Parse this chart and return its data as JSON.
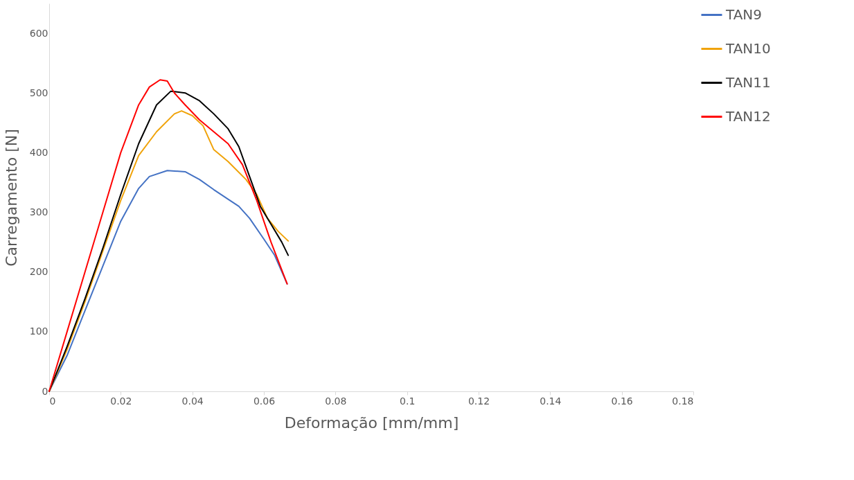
{
  "chart_data": {
    "type": "line",
    "xlabel": "Deformação [mm/mm]",
    "ylabel": "Carregamento [N]",
    "xlim": [
      0,
      0.18
    ],
    "xticks": [
      0,
      0.02,
      0.04,
      0.06,
      0.08,
      0.1,
      0.12,
      0.14,
      0.16,
      0.18
    ],
    "ylim": [
      0,
      650
    ],
    "yticks": [
      0,
      100,
      200,
      300,
      400,
      500,
      600
    ],
    "grid": false,
    "legend": "top right",
    "marker": "none",
    "line_style": "solid",
    "series": [
      {
        "name": "TAN9",
        "color": "#4472c4",
        "x": [
          0,
          0.005,
          0.01,
          0.015,
          0.02,
          0.025,
          0.028,
          0.033,
          0.038,
          0.042,
          0.046,
          0.05,
          0.053,
          0.056,
          0.06,
          0.063,
          0.0665
        ],
        "values": [
          0,
          60,
          135,
          210,
          285,
          340,
          360,
          370,
          368,
          355,
          338,
          322,
          310,
          290,
          255,
          228,
          180
        ]
      },
      {
        "name": "TAN10",
        "color": "#f0a30a",
        "x": [
          0,
          0.005,
          0.01,
          0.015,
          0.02,
          0.025,
          0.03,
          0.035,
          0.037,
          0.04,
          0.043,
          0.046,
          0.05,
          0.055,
          0.058,
          0.061,
          0.064,
          0.0668
        ],
        "values": [
          0,
          70,
          150,
          235,
          320,
          395,
          435,
          465,
          470,
          462,
          445,
          405,
          385,
          355,
          330,
          290,
          268,
          252
        ]
      },
      {
        "name": "TAN11",
        "color": "#000000",
        "x": [
          0,
          0.005,
          0.01,
          0.015,
          0.02,
          0.025,
          0.03,
          0.034,
          0.038,
          0.042,
          0.046,
          0.05,
          0.053,
          0.056,
          0.059,
          0.062,
          0.065,
          0.0668
        ],
        "values": [
          0,
          75,
          155,
          240,
          330,
          415,
          480,
          503,
          500,
          487,
          465,
          440,
          410,
          360,
          310,
          280,
          250,
          228
        ]
      },
      {
        "name": "TAN12",
        "color": "#ff0000",
        "x": [
          0,
          0.005,
          0.01,
          0.015,
          0.02,
          0.025,
          0.028,
          0.031,
          0.033,
          0.035,
          0.038,
          0.042,
          0.046,
          0.05,
          0.054,
          0.058,
          0.062,
          0.0665
        ],
        "values": [
          0,
          100,
          200,
          300,
          400,
          480,
          510,
          522,
          520,
          500,
          480,
          455,
          435,
          415,
          380,
          320,
          250,
          180
        ]
      }
    ]
  }
}
